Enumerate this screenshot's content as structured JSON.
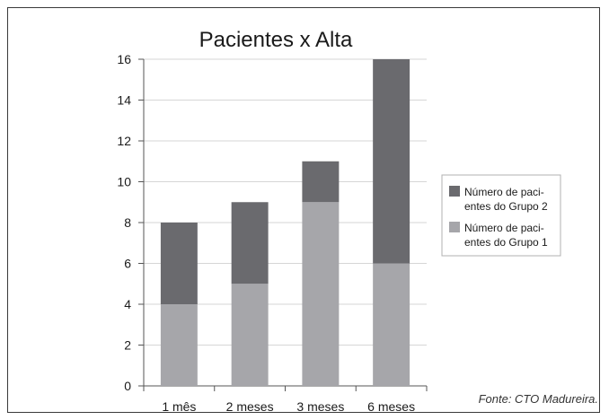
{
  "chart_data": {
    "type": "bar",
    "stacked": true,
    "title": "Pacientes x Alta",
    "categories": [
      "1 mês",
      "2 meses",
      "3 meses",
      "6 meses"
    ],
    "series": [
      {
        "name": "Número de paci-\nentes do Grupo 1",
        "values": [
          4,
          5,
          9,
          6
        ],
        "color": "#a6a6aa"
      },
      {
        "name": "Número de paci-\nentes do Grupo 2",
        "values": [
          4,
          4,
          2,
          10
        ],
        "color": "#6a6a6e"
      }
    ],
    "ylim": [
      0,
      16
    ],
    "yticks": [
      "0",
      "2",
      "4",
      "6",
      "8",
      "10",
      "12",
      "14",
      "16"
    ],
    "grid": true,
    "legend_position": "right"
  },
  "source_note": "Fonte: CTO Madureira."
}
